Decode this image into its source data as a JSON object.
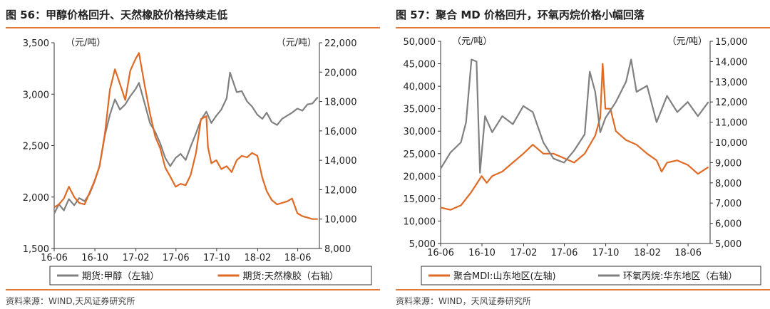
{
  "panels": [
    {
      "title": "图 56：甲醇价格回升、天然橡胶价格持续走低",
      "source": "资料来源：WIND,天风证券研究所",
      "chart_data": {
        "type": "line",
        "left_unit": "（元/吨）",
        "right_unit": "（元/吨）",
        "x_ticks": [
          "16-06",
          "16-10",
          "17-02",
          "17-06",
          "17-10",
          "18-02",
          "18-06"
        ],
        "left_axis": {
          "min": 1500,
          "max": 3500,
          "ticks": [
            "1,500",
            "2,000",
            "2,500",
            "3,000",
            "3,500"
          ]
        },
        "right_axis": {
          "min": 8000,
          "max": 22000,
          "ticks": [
            "8,000",
            "10,000",
            "12,000",
            "14,000",
            "16,000",
            "18,000",
            "20,000",
            "22,000"
          ]
        },
        "series": [
          {
            "name": "期货:甲醇（左轴）",
            "axis": "left",
            "color": "#808080",
            "points": [
              [
                "2016-06-01",
                1840
              ],
              [
                "2016-06-15",
                1930
              ],
              [
                "2016-06-30",
                1870
              ],
              [
                "2016-07-15",
                1980
              ],
              [
                "2016-07-31",
                1920
              ],
              [
                "2016-08-15",
                1990
              ],
              [
                "2016-08-31",
                1960
              ],
              [
                "2016-09-15",
                2030
              ],
              [
                "2016-09-30",
                2150
              ],
              [
                "2016-10-15",
                2300
              ],
              [
                "2016-10-31",
                2600
              ],
              [
                "2016-11-15",
                2800
              ],
              [
                "2016-11-30",
                2950
              ],
              [
                "2016-12-15",
                2850
              ],
              [
                "2016-12-31",
                2900
              ],
              [
                "2017-01-15",
                2980
              ],
              [
                "2017-01-31",
                3050
              ],
              [
                "2017-02-10",
                3110
              ],
              [
                "2017-02-28",
                2900
              ],
              [
                "2017-03-15",
                2720
              ],
              [
                "2017-03-31",
                2630
              ],
              [
                "2017-04-15",
                2520
              ],
              [
                "2017-04-30",
                2380
              ],
              [
                "2017-05-15",
                2300
              ],
              [
                "2017-05-31",
                2380
              ],
              [
                "2017-06-15",
                2420
              ],
              [
                "2017-06-30",
                2360
              ],
              [
                "2017-07-15",
                2490
              ],
              [
                "2017-07-31",
                2620
              ],
              [
                "2017-08-15",
                2750
              ],
              [
                "2017-08-31",
                2830
              ],
              [
                "2017-09-15",
                2720
              ],
              [
                "2017-09-30",
                2790
              ],
              [
                "2017-10-15",
                2850
              ],
              [
                "2017-10-31",
                2960
              ],
              [
                "2017-11-10",
                3210
              ],
              [
                "2017-11-30",
                3020
              ],
              [
                "2017-12-15",
                3030
              ],
              [
                "2017-12-31",
                2930
              ],
              [
                "2018-01-15",
                2880
              ],
              [
                "2018-01-31",
                2800
              ],
              [
                "2018-02-15",
                2760
              ],
              [
                "2018-02-28",
                2820
              ],
              [
                "2018-03-15",
                2730
              ],
              [
                "2018-03-31",
                2700
              ],
              [
                "2018-04-15",
                2760
              ],
              [
                "2018-04-30",
                2790
              ],
              [
                "2018-05-15",
                2820
              ],
              [
                "2018-05-31",
                2860
              ],
              [
                "2018-06-15",
                2840
              ],
              [
                "2018-06-30",
                2900
              ],
              [
                "2018-07-15",
                2910
              ],
              [
                "2018-07-31",
                2970
              ]
            ]
          },
          {
            "name": "期货:天然橡胶（右轴）",
            "axis": "right",
            "color": "#e06a24",
            "points": [
              [
                "2016-06-01",
                10800
              ],
              [
                "2016-06-15",
                11000
              ],
              [
                "2016-06-30",
                11400
              ],
              [
                "2016-07-15",
                12200
              ],
              [
                "2016-07-31",
                11500
              ],
              [
                "2016-08-15",
                11100
              ],
              [
                "2016-08-31",
                11000
              ],
              [
                "2016-09-15",
                11800
              ],
              [
                "2016-09-30",
                12600
              ],
              [
                "2016-10-15",
                13600
              ],
              [
                "2016-10-31",
                15800
              ],
              [
                "2016-11-15",
                18800
              ],
              [
                "2016-11-30",
                20200
              ],
              [
                "2016-12-15",
                19200
              ],
              [
                "2016-12-31",
                18100
              ],
              [
                "2017-01-15",
                20100
              ],
              [
                "2017-01-31",
                20900
              ],
              [
                "2017-02-10",
                21300
              ],
              [
                "2017-02-28",
                19000
              ],
              [
                "2017-03-15",
                17200
              ],
              [
                "2017-03-31",
                15600
              ],
              [
                "2017-04-15",
                14800
              ],
              [
                "2017-04-30",
                13500
              ],
              [
                "2017-05-15",
                12900
              ],
              [
                "2017-05-31",
                12200
              ],
              [
                "2017-06-15",
                12400
              ],
              [
                "2017-06-30",
                12300
              ],
              [
                "2017-07-15",
                13000
              ],
              [
                "2017-07-31",
                14500
              ],
              [
                "2017-08-15",
                16800
              ],
              [
                "2017-08-31",
                17000
              ],
              [
                "2017-09-05",
                14900
              ],
              [
                "2017-09-15",
                13800
              ],
              [
                "2017-09-30",
                14000
              ],
              [
                "2017-10-15",
                13400
              ],
              [
                "2017-10-31",
                13600
              ],
              [
                "2017-11-15",
                13200
              ],
              [
                "2017-11-30",
                14000
              ],
              [
                "2017-12-15",
                14300
              ],
              [
                "2017-12-31",
                14200
              ],
              [
                "2018-01-15",
                14500
              ],
              [
                "2018-01-31",
                14300
              ],
              [
                "2018-02-15",
                12800
              ],
              [
                "2018-02-28",
                11900
              ],
              [
                "2018-03-15",
                11300
              ],
              [
                "2018-03-31",
                11000
              ],
              [
                "2018-04-15",
                11100
              ],
              [
                "2018-04-30",
                11200
              ],
              [
                "2018-05-15",
                11400
              ],
              [
                "2018-05-31",
                10400
              ],
              [
                "2018-06-15",
                10200
              ],
              [
                "2018-06-30",
                10100
              ],
              [
                "2018-07-15",
                10000
              ],
              [
                "2018-07-31",
                10000
              ]
            ]
          }
        ]
      }
    },
    {
      "title": "图 57：聚合 MD 价格回升，环氧丙烷价格小幅回落",
      "source": "资料来源：WIND，天风证券研究所",
      "chart_data": {
        "type": "line",
        "left_unit": "（元/吨）",
        "right_unit": "（元/吨）",
        "x_ticks": [
          "16-06",
          "16-10",
          "17-02",
          "17-06",
          "17-10",
          "18-02",
          "18-06"
        ],
        "left_axis": {
          "min": 5000,
          "max": 50000,
          "ticks": [
            "5,000",
            "10,000",
            "15,000",
            "20,000",
            "25,000",
            "30,000",
            "35,000",
            "40,000",
            "45,000",
            "50,000"
          ]
        },
        "right_axis": {
          "min": 5000,
          "max": 15000,
          "ticks": [
            "5,000",
            "6,000",
            "7,000",
            "8,000",
            "9,000",
            "10,000",
            "11,000",
            "12,000",
            "13,000",
            "14,000",
            "15,000"
          ]
        },
        "series": [
          {
            "name": "聚合MDI:山东地区(左轴)",
            "axis": "left",
            "color": "#e06a24",
            "points": [
              [
                "2016-06-01",
                13000
              ],
              [
                "2016-06-30",
                12500
              ],
              [
                "2016-07-31",
                13500
              ],
              [
                "2016-08-31",
                16500
              ],
              [
                "2016-09-30",
                20000
              ],
              [
                "2016-10-15",
                18500
              ],
              [
                "2016-10-31",
                20000
              ],
              [
                "2016-11-30",
                21000
              ],
              [
                "2016-12-31",
                23000
              ],
              [
                "2017-01-31",
                25000
              ],
              [
                "2017-02-28",
                27000
              ],
              [
                "2017-03-31",
                25000
              ],
              [
                "2017-04-30",
                25000
              ],
              [
                "2017-05-31",
                24000
              ],
              [
                "2017-06-30",
                23000
              ],
              [
                "2017-07-31",
                25000
              ],
              [
                "2017-08-31",
                29000
              ],
              [
                "2017-09-15",
                33000
              ],
              [
                "2017-09-22",
                45000
              ],
              [
                "2017-09-30",
                35000
              ],
              [
                "2017-10-15",
                35000
              ],
              [
                "2017-10-31",
                30000
              ],
              [
                "2017-11-30",
                28000
              ],
              [
                "2017-12-31",
                27000
              ],
              [
                "2018-01-31",
                25000
              ],
              [
                "2018-02-28",
                23500
              ],
              [
                "2018-03-15",
                21000
              ],
              [
                "2018-03-31",
                23000
              ],
              [
                "2018-04-30",
                23500
              ],
              [
                "2018-05-31",
                22500
              ],
              [
                "2018-06-30",
                20500
              ],
              [
                "2018-07-31",
                22000
              ]
            ]
          },
          {
            "name": "环氧丙烷:华东地区（右轴）",
            "axis": "right",
            "color": "#808080",
            "points": [
              [
                "2016-06-01",
                8700
              ],
              [
                "2016-06-30",
                9500
              ],
              [
                "2016-07-31",
                10000
              ],
              [
                "2016-08-15",
                11000
              ],
              [
                "2016-08-31",
                14100
              ],
              [
                "2016-09-15",
                14000
              ],
              [
                "2016-09-25",
                8500
              ],
              [
                "2016-10-10",
                11300
              ],
              [
                "2016-10-31",
                10500
              ],
              [
                "2016-11-30",
                11300
              ],
              [
                "2016-12-31",
                10900
              ],
              [
                "2017-01-31",
                11800
              ],
              [
                "2017-02-28",
                11500
              ],
              [
                "2017-03-31",
                10000
              ],
              [
                "2017-04-30",
                9200
              ],
              [
                "2017-05-31",
                9000
              ],
              [
                "2017-06-30",
                9600
              ],
              [
                "2017-07-31",
                10400
              ],
              [
                "2017-08-15",
                13500
              ],
              [
                "2017-08-31",
                12500
              ],
              [
                "2017-09-15",
                10500
              ],
              [
                "2017-09-30",
                11200
              ],
              [
                "2017-10-31",
                12000
              ],
              [
                "2017-11-30",
                13000
              ],
              [
                "2017-12-15",
                14100
              ],
              [
                "2017-12-31",
                12500
              ],
              [
                "2018-01-31",
                12800
              ],
              [
                "2018-02-28",
                11000
              ],
              [
                "2018-03-31",
                12300
              ],
              [
                "2018-04-30",
                11500
              ],
              [
                "2018-05-31",
                12000
              ],
              [
                "2018-06-30",
                11300
              ],
              [
                "2018-07-31",
                12000
              ]
            ]
          }
        ]
      }
    }
  ]
}
